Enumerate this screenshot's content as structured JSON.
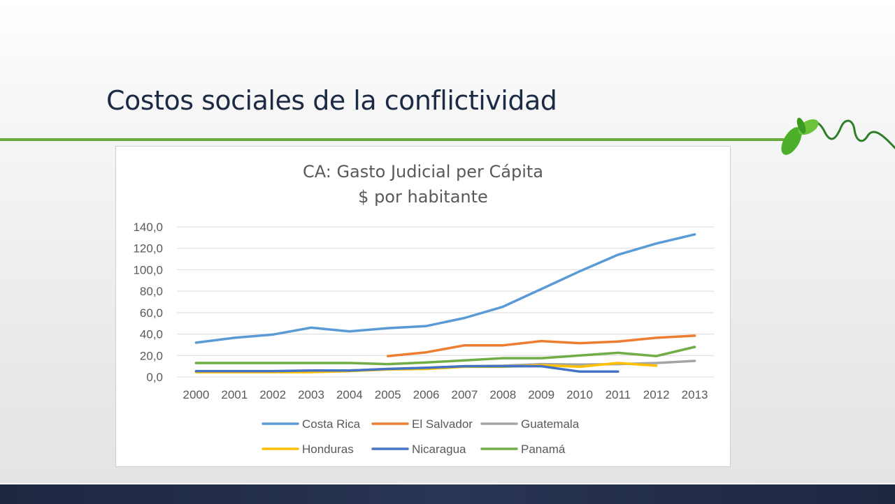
{
  "slide": {
    "title": "Costos sociales de la conflictividad"
  },
  "colors": {
    "rule": "#6aaa3a",
    "title": "#1c2a44",
    "footer": "#1d2740"
  },
  "chart_data": {
    "type": "line",
    "title": "CA: Gasto Judicial per Cápita",
    "subtitle": "$ por habitante",
    "xlabel": "",
    "ylabel": "",
    "ylim": [
      0,
      140
    ],
    "yticks": [
      "0,0",
      "20,0",
      "40,0",
      "60,0",
      "80,0",
      "100,0",
      "120,0",
      "140,0"
    ],
    "categories": [
      "2000",
      "2001",
      "2002",
      "2003",
      "2004",
      "2005",
      "2006",
      "2007",
      "2008",
      "2009",
      "2010",
      "2011",
      "2012",
      "2013"
    ],
    "grid": true,
    "legend_position": "bottom",
    "series": [
      {
        "name": "Costa Rica",
        "color": "#5b9bd5",
        "values": [
          32,
          36.5,
          39.5,
          46,
          42.5,
          45.5,
          47.5,
          55,
          65.5,
          82,
          98.5,
          114,
          124.5,
          133
        ]
      },
      {
        "name": "El Salvador",
        "color": "#ed7d31",
        "values": [
          null,
          null,
          null,
          null,
          null,
          19.5,
          23,
          29.5,
          29.5,
          33.5,
          31.5,
          33,
          36.5,
          38.5
        ]
      },
      {
        "name": "Guatemala",
        "color": "#a5a5a5",
        "values": [
          5,
          5,
          5,
          5,
          6,
          7.5,
          8.5,
          10,
          10.5,
          12,
          11.5,
          12,
          13,
          15
        ]
      },
      {
        "name": "Honduras",
        "color": "#ffc000",
        "values": [
          4.5,
          4.5,
          4.5,
          4.5,
          5.5,
          7,
          7.5,
          9.5,
          9.5,
          11,
          9.5,
          13,
          10.5,
          null
        ]
      },
      {
        "name": "Nicaragua",
        "color": "#4472c4",
        "values": [
          5.5,
          5.5,
          5.5,
          6,
          6,
          7.5,
          8.5,
          10,
          10,
          10,
          5,
          5,
          null,
          null
        ]
      },
      {
        "name": "Panamá",
        "color": "#70ad47",
        "values": [
          13,
          13,
          13,
          13,
          13,
          12,
          13.5,
          15.5,
          17.5,
          17.5,
          20,
          22.5,
          19.5,
          28
        ]
      }
    ]
  }
}
